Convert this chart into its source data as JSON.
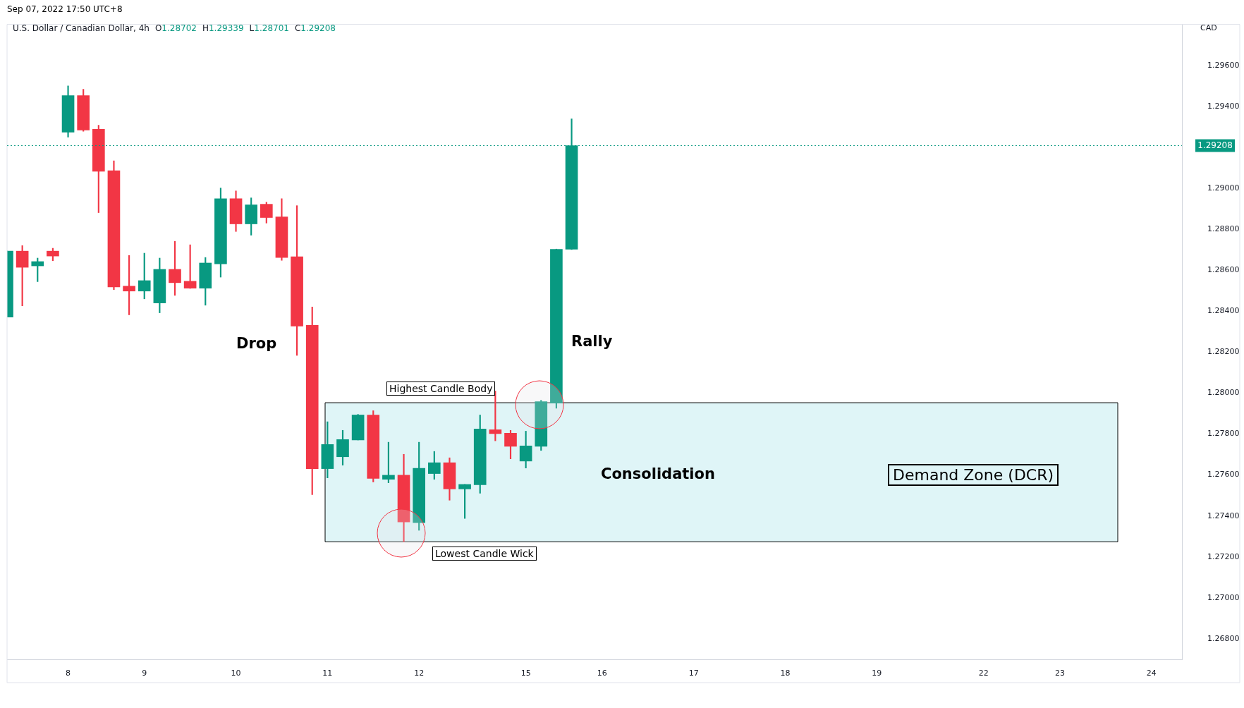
{
  "chart_data": {
    "type": "candlestick",
    "title": "U.S. Dollar / Canadian Dollar, 4h",
    "subtitle": "O1.28702 H1.29339 L1.28701 C1.29208",
    "ylabel": "CAD",
    "annotations": [
      "Sep 07, 2022 17:50 UTC+8",
      "Drop",
      "Rally",
      "Highest Candle Body",
      "Lowest Candle Wick",
      "Consolidation"
    ],
    "categories": [
      null,
      null,
      null,
      null,
      "8",
      null,
      null,
      null,
      null,
      "9",
      null,
      null,
      null,
      null,
      null,
      "10",
      null,
      null,
      null,
      null,
      null,
      "11",
      null,
      null,
      null,
      null,
      null,
      "12",
      null,
      null,
      null,
      null,
      null,
      null,
      "15",
      null,
      null,
      null,
      null,
      "16",
      null,
      null,
      null,
      null,
      null,
      "17",
      null,
      null,
      null,
      null,
      null,
      "18",
      null,
      null,
      null,
      null,
      null,
      "19",
      null,
      null,
      null,
      null,
      null,
      null,
      "22",
      null,
      null,
      null,
      null,
      "23",
      null,
      null,
      null,
      null,
      null,
      "24",
      null,
      null
    ],
    "ohlc": [
      [
        1.28371,
        1.28693,
        1.28371,
        1.28693
      ],
      [
        1.28693,
        1.2872,
        1.28426,
        1.28614
      ],
      [
        1.28621,
        1.28659,
        1.28544,
        1.28642
      ],
      [
        1.28693,
        1.28707,
        1.28646,
        1.28669
      ],
      [
        1.29274,
        1.295,
        1.2925,
        1.29452
      ],
      [
        1.29452,
        1.29483,
        1.29278,
        1.29284
      ],
      [
        1.29288,
        1.29308,
        1.28881,
        1.29083
      ],
      [
        1.29086,
        1.29134,
        1.28505,
        1.28518
      ],
      [
        1.28522,
        1.28672,
        1.28382,
        1.28498
      ],
      [
        1.28498,
        1.28683,
        1.2846,
        1.28549
      ],
      [
        1.2844,
        1.28659,
        1.28392,
        1.28604
      ],
      [
        1.28604,
        1.28741,
        1.28477,
        1.28539
      ],
      [
        1.28546,
        1.28724,
        1.28511,
        1.28512
      ],
      [
        1.28512,
        1.28662,
        1.28429,
        1.28635
      ],
      [
        1.28631,
        1.29001,
        1.28566,
        1.28949
      ],
      [
        1.28949,
        1.28987,
        1.28789,
        1.28826
      ],
      [
        1.28826,
        1.28953,
        1.28771,
        1.28919
      ],
      [
        1.28922,
        1.28932,
        1.2883,
        1.28857
      ],
      [
        1.2886,
        1.28949,
        1.28648,
        1.28662
      ],
      [
        1.28666,
        1.28915,
        1.28184,
        1.28327
      ],
      [
        1.28331,
        1.2842,
        1.27504,
        1.27631
      ],
      [
        1.27631,
        1.2786,
        1.27586,
        1.27749
      ],
      [
        1.27689,
        1.27818,
        1.27648,
        1.27773
      ],
      [
        1.27771,
        1.27896,
        1.27771,
        1.27893
      ],
      [
        1.27893,
        1.27914,
        1.27566,
        1.27583
      ],
      [
        1.27579,
        1.2776,
        1.27562,
        1.27599
      ],
      [
        1.27599,
        1.27701,
        1.27274,
        1.27371
      ],
      [
        1.27367,
        1.2776,
        1.2733,
        1.27633
      ],
      [
        1.27607,
        1.27715,
        1.27579,
        1.2766
      ],
      [
        1.2766,
        1.27684,
        1.27477,
        1.27532
      ],
      [
        1.27532,
        1.27554,
        1.27388,
        1.27554
      ],
      [
        1.27552,
        1.27893,
        1.27511,
        1.27825
      ],
      [
        1.27821,
        1.2801,
        1.27767,
        1.27802
      ],
      [
        1.27804,
        1.27818,
        1.27679,
        1.2774
      ],
      [
        1.27668,
        1.27814,
        1.27634,
        1.27742
      ],
      [
        1.2774,
        1.27965,
        1.2772,
        1.27958
      ],
      [
        1.27951,
        1.28703,
        1.27926,
        1.28702
      ],
      [
        1.28702,
        1.29339,
        1.28701,
        1.29208
      ],
      null,
      null,
      null,
      null,
      null,
      null,
      null,
      null,
      null,
      null,
      null,
      null,
      null,
      null,
      null,
      null,
      null,
      null,
      null,
      null,
      null,
      null,
      null,
      null,
      null,
      null,
      null,
      null,
      null,
      null,
      null,
      null,
      null,
      null,
      null,
      null,
      null,
      null,
      null,
      null
    ],
    "colors": [
      "#089981",
      "#f23645",
      "#089981",
      "#f23645",
      "#089981",
      "#f23645",
      "#f23645",
      "#f23645",
      "#f23645",
      "#089981",
      "#089981",
      "#f23645",
      "#f23645",
      "#089981",
      "#089981",
      "#f23645",
      "#089981",
      "#f23645",
      "#f23645",
      "#f23645",
      "#f23645",
      "#089981",
      "#089981",
      "#089981",
      "#f23645",
      "#089981",
      "#f23645",
      "#089981",
      "#089981",
      "#f23645",
      "#089981",
      "#089981",
      "#f23645",
      "#f23645",
      "#089981",
      "#089981",
      "#089981",
      "#089981",
      null,
      null,
      null,
      null,
      null,
      null,
      null,
      null,
      null,
      null,
      null,
      null,
      null,
      null,
      null,
      null,
      null,
      null,
      null,
      null,
      null,
      null,
      null,
      null,
      null,
      null,
      null,
      null,
      null,
      null,
      null,
      null,
      null,
      null,
      null,
      null,
      null,
      null,
      null,
      null
    ],
    "ylim": [
      1.267,
      1.298
    ],
    "yticks": [
      {
        "value": 1.268,
        "label": "1.26800"
      },
      {
        "value": 1.27,
        "label": "1.27000"
      },
      {
        "value": 1.272,
        "label": "1.27200"
      },
      {
        "value": 1.274,
        "label": "1.27400"
      },
      {
        "value": 1.276,
        "label": "1.27600"
      },
      {
        "value": 1.278,
        "label": "1.27800"
      },
      {
        "value": 1.28,
        "label": "1.28000"
      },
      {
        "value": 1.282,
        "label": "1.28200"
      },
      {
        "value": 1.284,
        "label": "1.28400"
      },
      {
        "value": 1.286,
        "label": "1.28600"
      },
      {
        "value": 1.288,
        "label": "1.28800"
      },
      {
        "value": 1.29,
        "label": "1.29000"
      },
      {
        "value": 1.294,
        "label": "1.29400"
      },
      {
        "value": 1.296,
        "label": "1.29600"
      }
    ],
    "ref_lines": [
      {
        "axis": "y",
        "value": 1.29208,
        "label": "1.29208",
        "color": "#089981",
        "line_style": "dotted"
      }
    ],
    "bands": [
      {
        "axis": "y",
        "from": 1.27274,
        "to": 1.27953,
        "label": "Demand Zone (DCR)",
        "color": "#dff5f7"
      }
    ],
    "grid": false,
    "legend": false
  }
}
